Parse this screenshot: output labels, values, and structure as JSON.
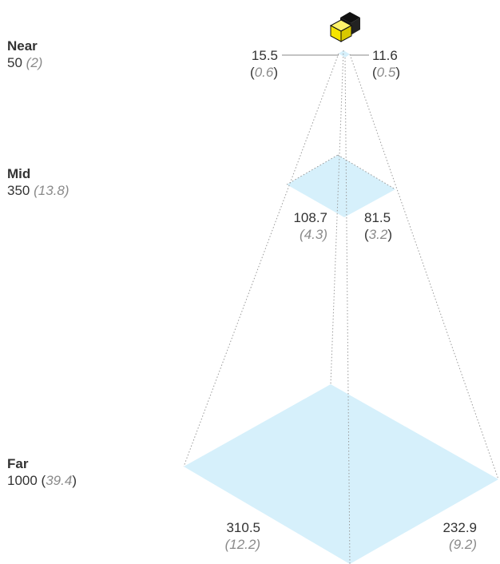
{
  "planes": {
    "near": {
      "name": "Near",
      "distance": "50",
      "distance_in": "2",
      "width": "15.5",
      "width_in": "0.6",
      "height": "11.6",
      "height_in": "0.5"
    },
    "mid": {
      "name": "Mid",
      "distance": "350",
      "distance_in": "13.8",
      "width": "108.7",
      "width_in": "4.3",
      "height": "81.5",
      "height_in": "3.2"
    },
    "far": {
      "name": "Far",
      "distance": "1000",
      "distance_in": "39.4",
      "width": "310.5",
      "width_in": "12.2",
      "height": "232.9",
      "height_in": "9.2"
    }
  },
  "colors": {
    "plane_fill": "#d6f0fb",
    "guide": "#9a9a9a",
    "camera_yellow": "#f5e400",
    "camera_black": "#111111"
  },
  "icons": {
    "camera": "camera-cube-icon"
  }
}
